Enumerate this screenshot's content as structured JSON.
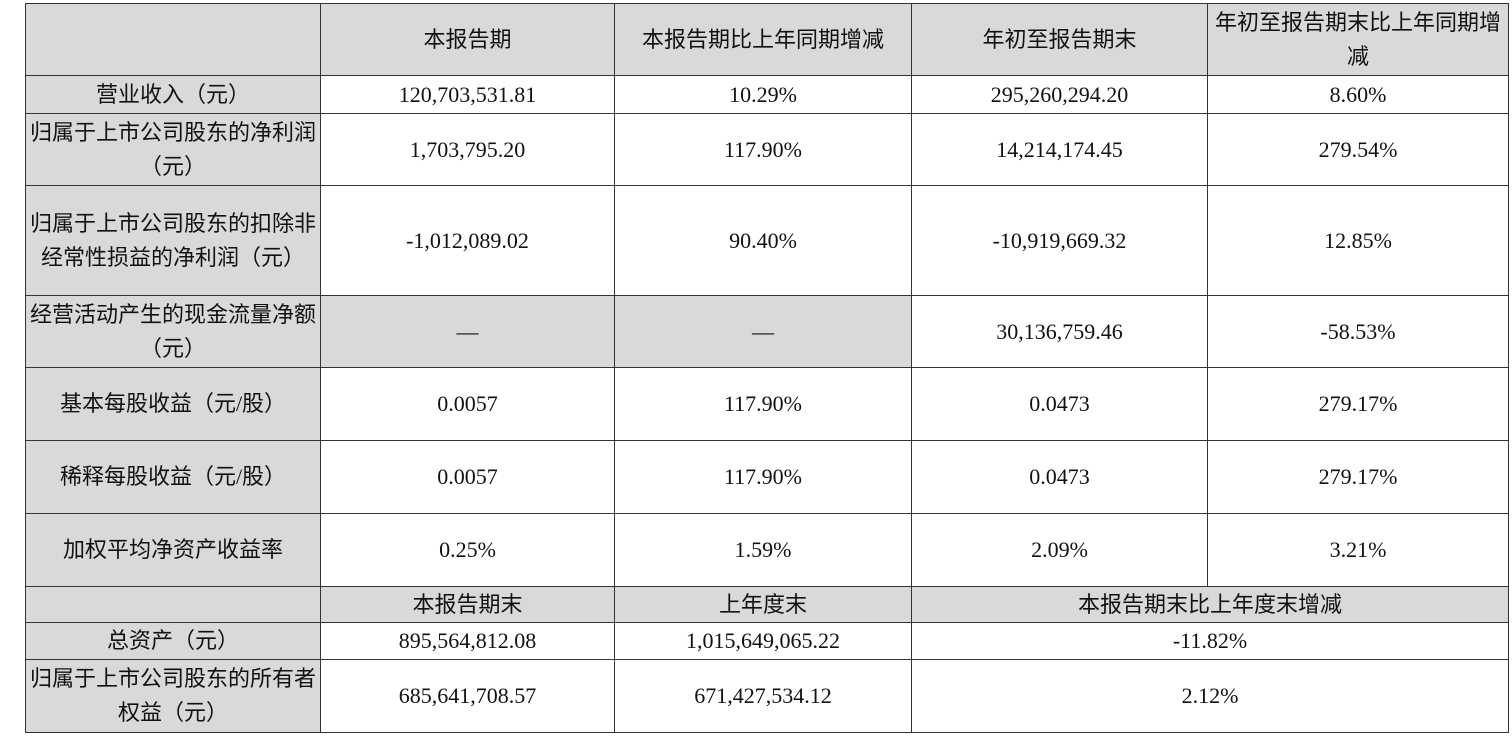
{
  "header": [
    "",
    "本报告期",
    "本报告期比上年同期增减",
    "年初至报告期末",
    "年初至报告期末比上年同期增减"
  ],
  "rows": [
    {
      "label": "营业收入（元）",
      "values": [
        "120,703,531.81",
        "10.29%",
        "295,260,294.20",
        "8.60%"
      ]
    },
    {
      "label": "归属于上市公司股东的净利润（元）",
      "values": [
        "1,703,795.20",
        "117.90%",
        "14,214,174.45",
        "279.54%"
      ]
    },
    {
      "label": "归属于上市公司股东的扣除非经常性损益的净利润（元）",
      "values": [
        "-1,012,089.02",
        "90.40%",
        "-10,919,669.32",
        "12.85%"
      ]
    },
    {
      "label": "经营活动产生的现金流量净额（元）",
      "values": [
        "—",
        "—",
        "30,136,759.46",
        "-58.53%"
      ]
    },
    {
      "label": "基本每股收益（元/股）",
      "values": [
        "0.0057",
        "117.90%",
        "0.0473",
        "279.17%"
      ]
    },
    {
      "label": "稀释每股收益（元/股）",
      "values": [
        "0.0057",
        "117.90%",
        "0.0473",
        "279.17%"
      ]
    },
    {
      "label": "加权平均净资产收益率",
      "values": [
        "0.25%",
        "1.59%",
        "2.09%",
        "3.21%"
      ]
    }
  ],
  "header2": [
    "",
    "本报告期末",
    "上年度末",
    "本报告期末比上年度末增减"
  ],
  "rows2": [
    {
      "label": "总资产（元）",
      "values": [
        "895,564,812.08",
        "1,015,649,065.22",
        "-11.82%"
      ]
    },
    {
      "label": "归属于上市公司股东的所有者权益（元）",
      "values": [
        "685,641,708.57",
        "671,427,534.12",
        "2.12%"
      ]
    }
  ],
  "colors": {
    "header_fill": "#d9d9d9",
    "border": "#333333"
  }
}
